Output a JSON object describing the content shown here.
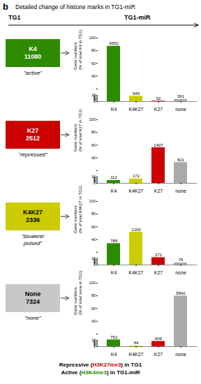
{
  "title": "Detailed change of histone marks in TG1-miR",
  "annotations": [
    {
      "text": "b"
    },
    {
      "text": "TG1"
    },
    {
      "text": "TG1-miR"
    },
    {
      "parts": [
        {
          "text": "Repressive (",
          "color": "#000000"
        },
        {
          "text": "H3K27me3",
          "color": "#cc0000"
        },
        {
          "text": ") in TG1",
          "color": "#000000"
        }
      ]
    },
    {
      "parts": [
        {
          "text": "Active (",
          "color": "#000000"
        },
        {
          "text": "H3K4me3",
          "color": "#2e8b00"
        },
        {
          "text": ") in TG1-miR",
          "color": "#000000"
        }
      ]
    }
  ],
  "chart_data": [
    {
      "type": "bar",
      "annotations": [
        {
          "text": "K4\n11080",
          "color": "#2e8b00"
        },
        {
          "text": "\"active\""
        }
      ],
      "ylabel": "Gene numbers\n(% of total K4 in TG1)",
      "categories": [
        "K4",
        "K4K27",
        "K27",
        "none"
      ],
      "values": [
        87.2,
        8.5,
        0.8,
        3.5
      ],
      "counts": [
        9652,
        945,
        92,
        391
      ],
      "colors": [
        "#2e8b00",
        "#cccc00",
        "#cc0000",
        "#aaaaaa"
      ],
      "ylim": [
        0,
        100
      ],
      "yticks": [
        0,
        2,
        4,
        6,
        8,
        10,
        {
          "value": 20,
          "label": ""
        },
        40,
        60,
        80,
        100
      ],
      "grid": false
    },
    {
      "type": "bar",
      "annotations": [
        {
          "text": "K27\n2512",
          "color": "#cc0000"
        },
        {
          "text": "\"repressed\""
        }
      ],
      "ylabel": "Gene numbers\n(% of total K27 in TG1)",
      "categories": [
        "K4",
        "K4K27",
        "K27",
        "none"
      ],
      "values": [
        4.5,
        6.8,
        56.0,
        32.7
      ],
      "counts": [
        112,
        172,
        1407,
        821
      ],
      "colors": [
        "#2e8b00",
        "#cccc00",
        "#cc0000",
        "#aaaaaa"
      ],
      "ylim": [
        0,
        100
      ],
      "yticks": [
        0,
        2,
        4,
        6,
        8,
        10,
        {
          "value": 20,
          "label": ""
        },
        40,
        60,
        80,
        100
      ],
      "grid": false
    },
    {
      "type": "bar",
      "annotations": [
        {
          "text": "K4K27\n2336",
          "color": "#cccc00"
        },
        {
          "text": "\"bivalent/\npoised\""
        }
      ],
      "ylabel": "Gene numbers\n(% of total K4K27 in TG1)",
      "categories": [
        "K4",
        "K4K27",
        "K27",
        "none"
      ],
      "values": [
        33.7,
        51.4,
        11.6,
        3.3
      ],
      "counts": [
        788,
        1200,
        272,
        76
      ],
      "colors": [
        "#2e8b00",
        "#cccc00",
        "#cc0000",
        "#aaaaaa"
      ],
      "ylim": [
        0,
        100
      ],
      "yticks": [
        0,
        2,
        4,
        6,
        8,
        10,
        {
          "value": 20,
          "label": ""
        },
        40,
        60,
        80,
        100
      ],
      "grid": false
    },
    {
      "type": "bar",
      "annotations": [
        {
          "text": "None\n7324",
          "color": "#c8c8c8"
        },
        {
          "text": "\"none\""
        }
      ],
      "ylabel": "Gene numbers\n(% of total none in TG1)",
      "categories": [
        "K4",
        "K4K27",
        "K27",
        "none"
      ],
      "values": [
        10.8,
        1.1,
        8.3,
        79.8
      ],
      "counts": [
        792,
        84,
        606,
        5842
      ],
      "colors": [
        "#2e8b00",
        "#cccc00",
        "#cc0000",
        "#aaaaaa"
      ],
      "ylim": [
        0,
        100
      ],
      "yticks": [
        0,
        2,
        4,
        6,
        8,
        10,
        {
          "value": 20,
          "label": ""
        },
        40,
        60,
        80,
        100
      ],
      "grid": false
    }
  ]
}
